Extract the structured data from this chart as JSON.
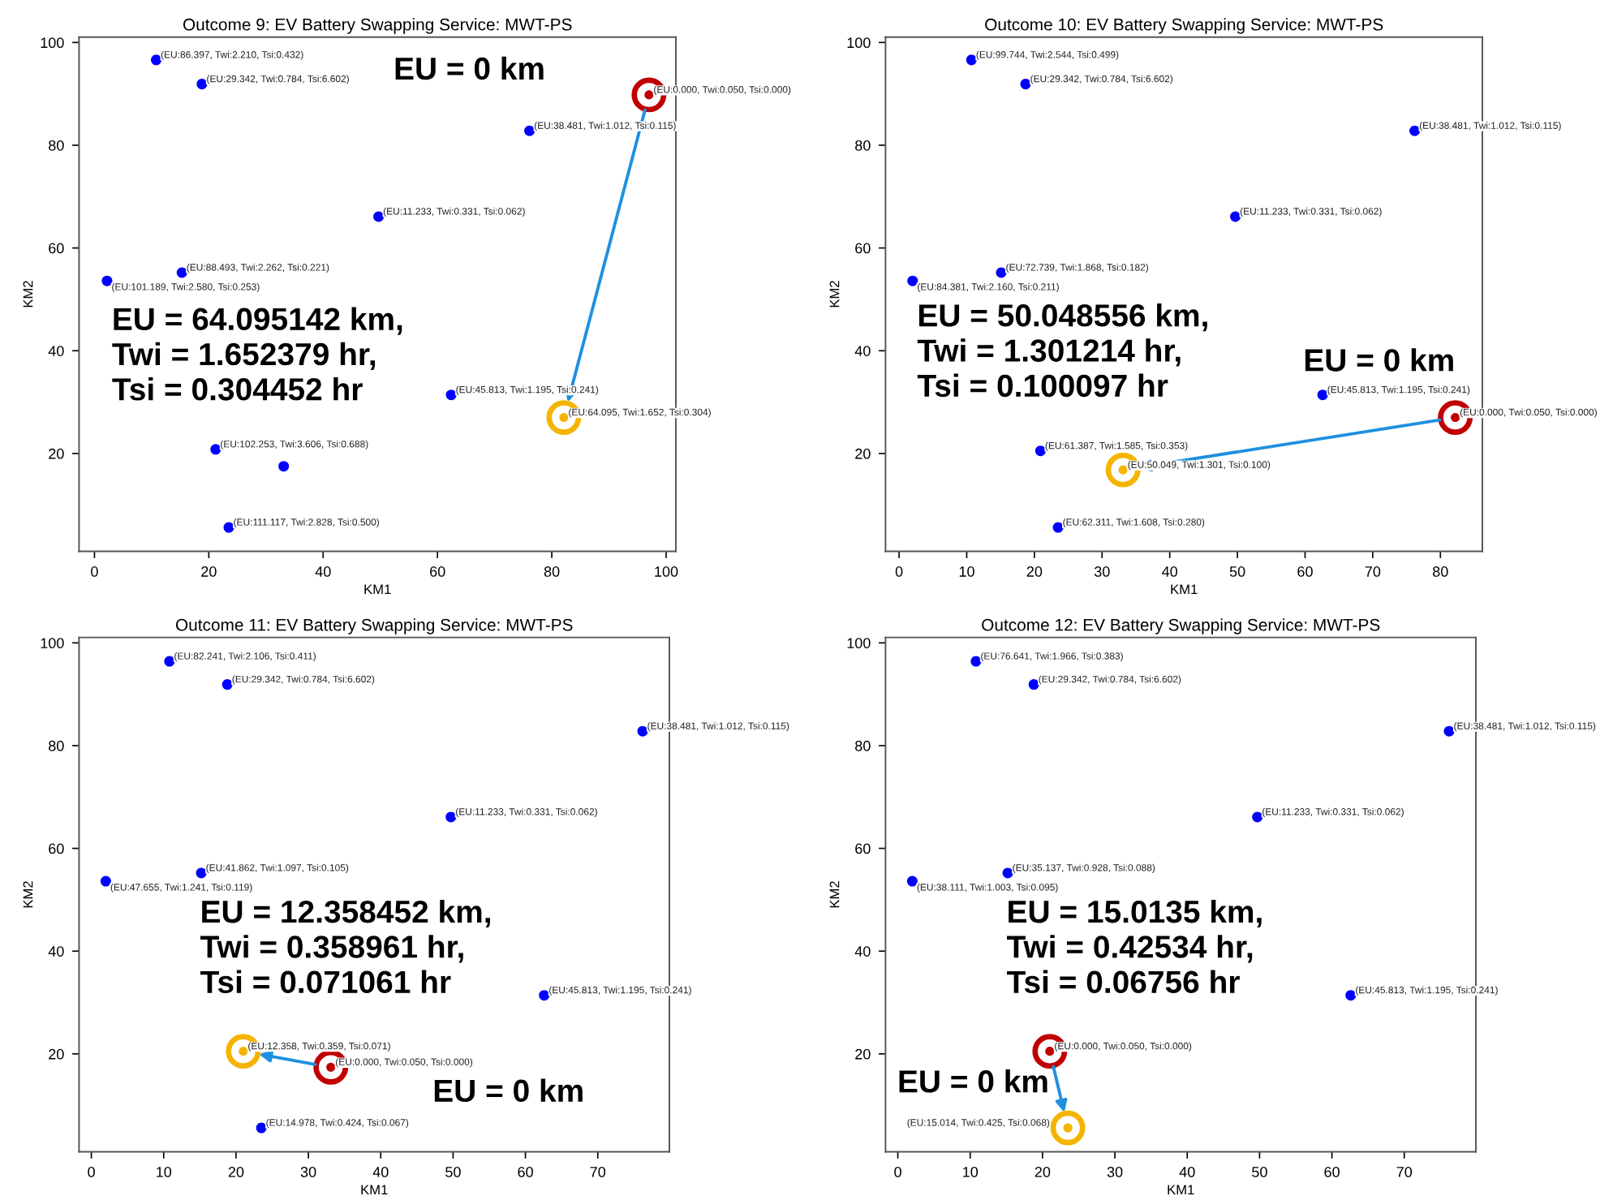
{
  "chart_data": [
    {
      "type": "scatter",
      "title": "Outcome 9: EV Battery Swapping Service: MWT-PS",
      "xlabel": "KM1",
      "ylabel": "KM2",
      "xlim": [
        -2.7,
        101.7
      ],
      "ylim": [
        0.95,
        101.05
      ],
      "xticks": [
        0,
        20,
        40,
        60,
        80,
        100
      ],
      "yticks": [
        20,
        40,
        60,
        80,
        100
      ],
      "marker": "circle",
      "series": [
        {
          "type": "scatter",
          "color": "#0000ff",
          "x": [
            10.8,
            18.8,
            76.1,
            49.7,
            2.2,
            15.3,
            62.4,
            23.5,
            21.2,
            33.1
          ],
          "values": [
            96.6,
            91.9,
            82.8,
            66.1,
            53.6,
            55.2,
            31.4,
            5.6,
            20.8,
            17.5
          ],
          "value_labels": [
            "(EU:86.397, Twi:2.210, Tsi:0.432)",
            "(EU:29.342, Twi:0.784, Tsi:6.602)",
            "(EU:38.481, Twi:1.012, Tsi:0.115)",
            "(EU:11.233, Twi:0.331, Tsi:0.062)",
            "(EU:101.189, Twi:2.580, Tsi:0.253)",
            "(EU:88.493, Twi:2.262, Tsi:0.221)",
            "(EU:45.813, Twi:1.195, Tsi:0.241)",
            "(EU:111.117, Twi:2.828, Tsi:0.500)",
            "(EU:102.253, Twi:3.606, Tsi:0.688)",
            null
          ]
        },
        {
          "type": "scatter",
          "color": "#c00000",
          "x": [
            97.0
          ],
          "values": [
            89.8
          ],
          "value_labels": [
            "(EU:0.000, Twi:0.050, Tsi:0.000)"
          ]
        },
        {
          "type": "scatter",
          "color": "#f5b400",
          "x": [
            82.1
          ],
          "values": [
            27.0
          ],
          "value_labels": [
            "(EU:64.095, Twi:1.652, Tsi:0.304)"
          ]
        }
      ],
      "annotations": [
        "EU = 0 km",
        "EU = 64.095142 km,\nTwi = 1.652379 hr,\nTsi = 0.304452 hr"
      ]
    },
    {
      "type": "scatter",
      "title": "Outcome 10: EV Battery Swapping Service: MWT-PS",
      "xlabel": "KM1",
      "ylabel": "KM2",
      "xlim": [
        -2.0,
        86.2
      ],
      "ylim": [
        0.95,
        101.05
      ],
      "xticks": [
        0,
        10,
        20,
        30,
        40,
        50,
        60,
        70,
        80
      ],
      "yticks": [
        20,
        40,
        60,
        80,
        100
      ],
      "marker": "circle",
      "series": [
        {
          "type": "scatter",
          "color": "#0000ff",
          "x": [
            10.7,
            18.7,
            76.2,
            49.7,
            2.0,
            15.1,
            62.6,
            23.5,
            20.9
          ],
          "values": [
            96.6,
            91.9,
            82.8,
            66.1,
            53.6,
            55.2,
            31.4,
            5.6,
            20.5
          ],
          "value_labels": [
            "(EU:99.744, Twi:2.544, Tsi:0.499)",
            "(EU:29.342, Twi:0.784, Tsi:6.602)",
            "(EU:38.481, Twi:1.012, Tsi:0.115)",
            "(EU:11.233, Twi:0.331, Tsi:0.062)",
            "(EU:84.381, Twi:2.160, Tsi:0.211)",
            "(EU:72.739, Twi:1.868, Tsi:0.182)",
            "(EU:45.813, Twi:1.195, Tsi:0.241)",
            "(EU:62.311, Twi:1.608, Tsi:0.280)",
            "(EU:61.387, Twi:1.585, Tsi:0.353)"
          ]
        },
        {
          "type": "scatter",
          "color": "#c00000",
          "x": [
            82.2
          ],
          "values": [
            27.0
          ],
          "value_labels": [
            "(EU:0.000, Twi:0.050, Tsi:0.000)"
          ]
        },
        {
          "type": "scatter",
          "color": "#f5b400",
          "x": [
            33.1
          ],
          "values": [
            16.8
          ],
          "value_labels": [
            "(EU:50.049, Twi:1.301, Tsi:0.100)"
          ]
        }
      ],
      "annotations": [
        "EU = 0 km",
        "EU = 50.048556 km,\nTwi = 1.301214 hr,\nTsi = 0.100097 hr"
      ]
    },
    {
      "type": "scatter",
      "title": "Outcome 11: EV Battery Swapping Service: MWT-PS",
      "xlabel": "KM1",
      "ylabel": "KM2",
      "xlim": [
        -1.7,
        79.9
      ],
      "ylim": [
        0.95,
        101.05
      ],
      "xticks": [
        0,
        10,
        20,
        30,
        40,
        50,
        60,
        70
      ],
      "yticks": [
        20,
        40,
        60,
        80,
        100
      ],
      "marker": "circle",
      "series": [
        {
          "type": "scatter",
          "color": "#0000ff",
          "x": [
            10.8,
            18.8,
            76.2,
            49.7,
            2.0,
            15.2,
            62.6,
            23.5
          ],
          "values": [
            96.4,
            91.9,
            82.8,
            66.1,
            53.6,
            55.2,
            31.4,
            5.6
          ],
          "value_labels": [
            "(EU:82.241, Twi:2.106, Tsi:0.411)",
            "(EU:29.342, Twi:0.784, Tsi:6.602)",
            "(EU:38.481, Twi:1.012, Tsi:0.115)",
            "(EU:11.233, Twi:0.331, Tsi:0.062)",
            "(EU:47.655, Twi:1.241, Tsi:0.119)",
            "(EU:41.862, Twi:1.097, Tsi:0.105)",
            "(EU:45.813, Twi:1.195, Tsi:0.241)",
            "(EU:14.978, Twi:0.424, Tsi:0.067)"
          ]
        },
        {
          "type": "scatter",
          "color": "#c00000",
          "x": [
            33.1
          ],
          "values": [
            17.4
          ],
          "value_labels": [
            "(EU:0.000, Twi:0.050, Tsi:0.000)"
          ]
        },
        {
          "type": "scatter",
          "color": "#f5b400",
          "x": [
            21.0
          ],
          "values": [
            20.5
          ],
          "value_labels": [
            "(EU:12.358, Twi:0.359, Tsi:0.071)"
          ]
        }
      ],
      "annotations": [
        "EU = 0 km",
        "EU = 12.358452 km,\nTwi = 0.358961 hr,\nTsi = 0.071061 hr"
      ]
    },
    {
      "type": "scatter",
      "title": "Outcome 12: EV Battery Swapping Service: MWT-PS",
      "xlabel": "KM1",
      "ylabel": "KM2",
      "xlim": [
        -1.7,
        79.9
      ],
      "ylim": [
        0.95,
        101.05
      ],
      "xticks": [
        0,
        10,
        20,
        30,
        40,
        50,
        60,
        70
      ],
      "yticks": [
        20,
        40,
        60,
        80,
        100
      ],
      "marker": "circle",
      "series": [
        {
          "type": "scatter",
          "color": "#0000ff",
          "x": [
            10.8,
            18.8,
            76.2,
            49.7,
            2.0,
            15.2,
            62.6
          ],
          "values": [
            96.4,
            91.9,
            82.8,
            66.1,
            53.6,
            55.2,
            31.4
          ],
          "value_labels": [
            "(EU:76.641, Twi:1.966, Tsi:0.383)",
            "(EU:29.342, Twi:0.784, Tsi:6.602)",
            "(EU:38.481, Twi:1.012, Tsi:0.115)",
            "(EU:11.233, Twi:0.331, Tsi:0.062)",
            "(EU:38.111, Twi:1.003, Tsi:0.095)",
            "(EU:35.137, Twi:0.928, Tsi:0.088)",
            "(EU:45.813, Twi:1.195, Tsi:0.241)"
          ]
        },
        {
          "type": "scatter",
          "color": "#c00000",
          "x": [
            21.0
          ],
          "values": [
            20.5
          ],
          "value_labels": [
            "(EU:0.000, Twi:0.050, Tsi:0.000)"
          ]
        },
        {
          "type": "scatter",
          "color": "#f5b400",
          "x": [
            23.5
          ],
          "values": [
            5.6
          ],
          "value_labels": [
            "(EU:15.014, Twi:0.425, Tsi:0.068)"
          ]
        }
      ],
      "annotations": [
        "EU = 0 km",
        "EU = 15.0135 km,\nTwi = 0.42534 hr,\nTsi = 0.06756 hr"
      ]
    }
  ]
}
